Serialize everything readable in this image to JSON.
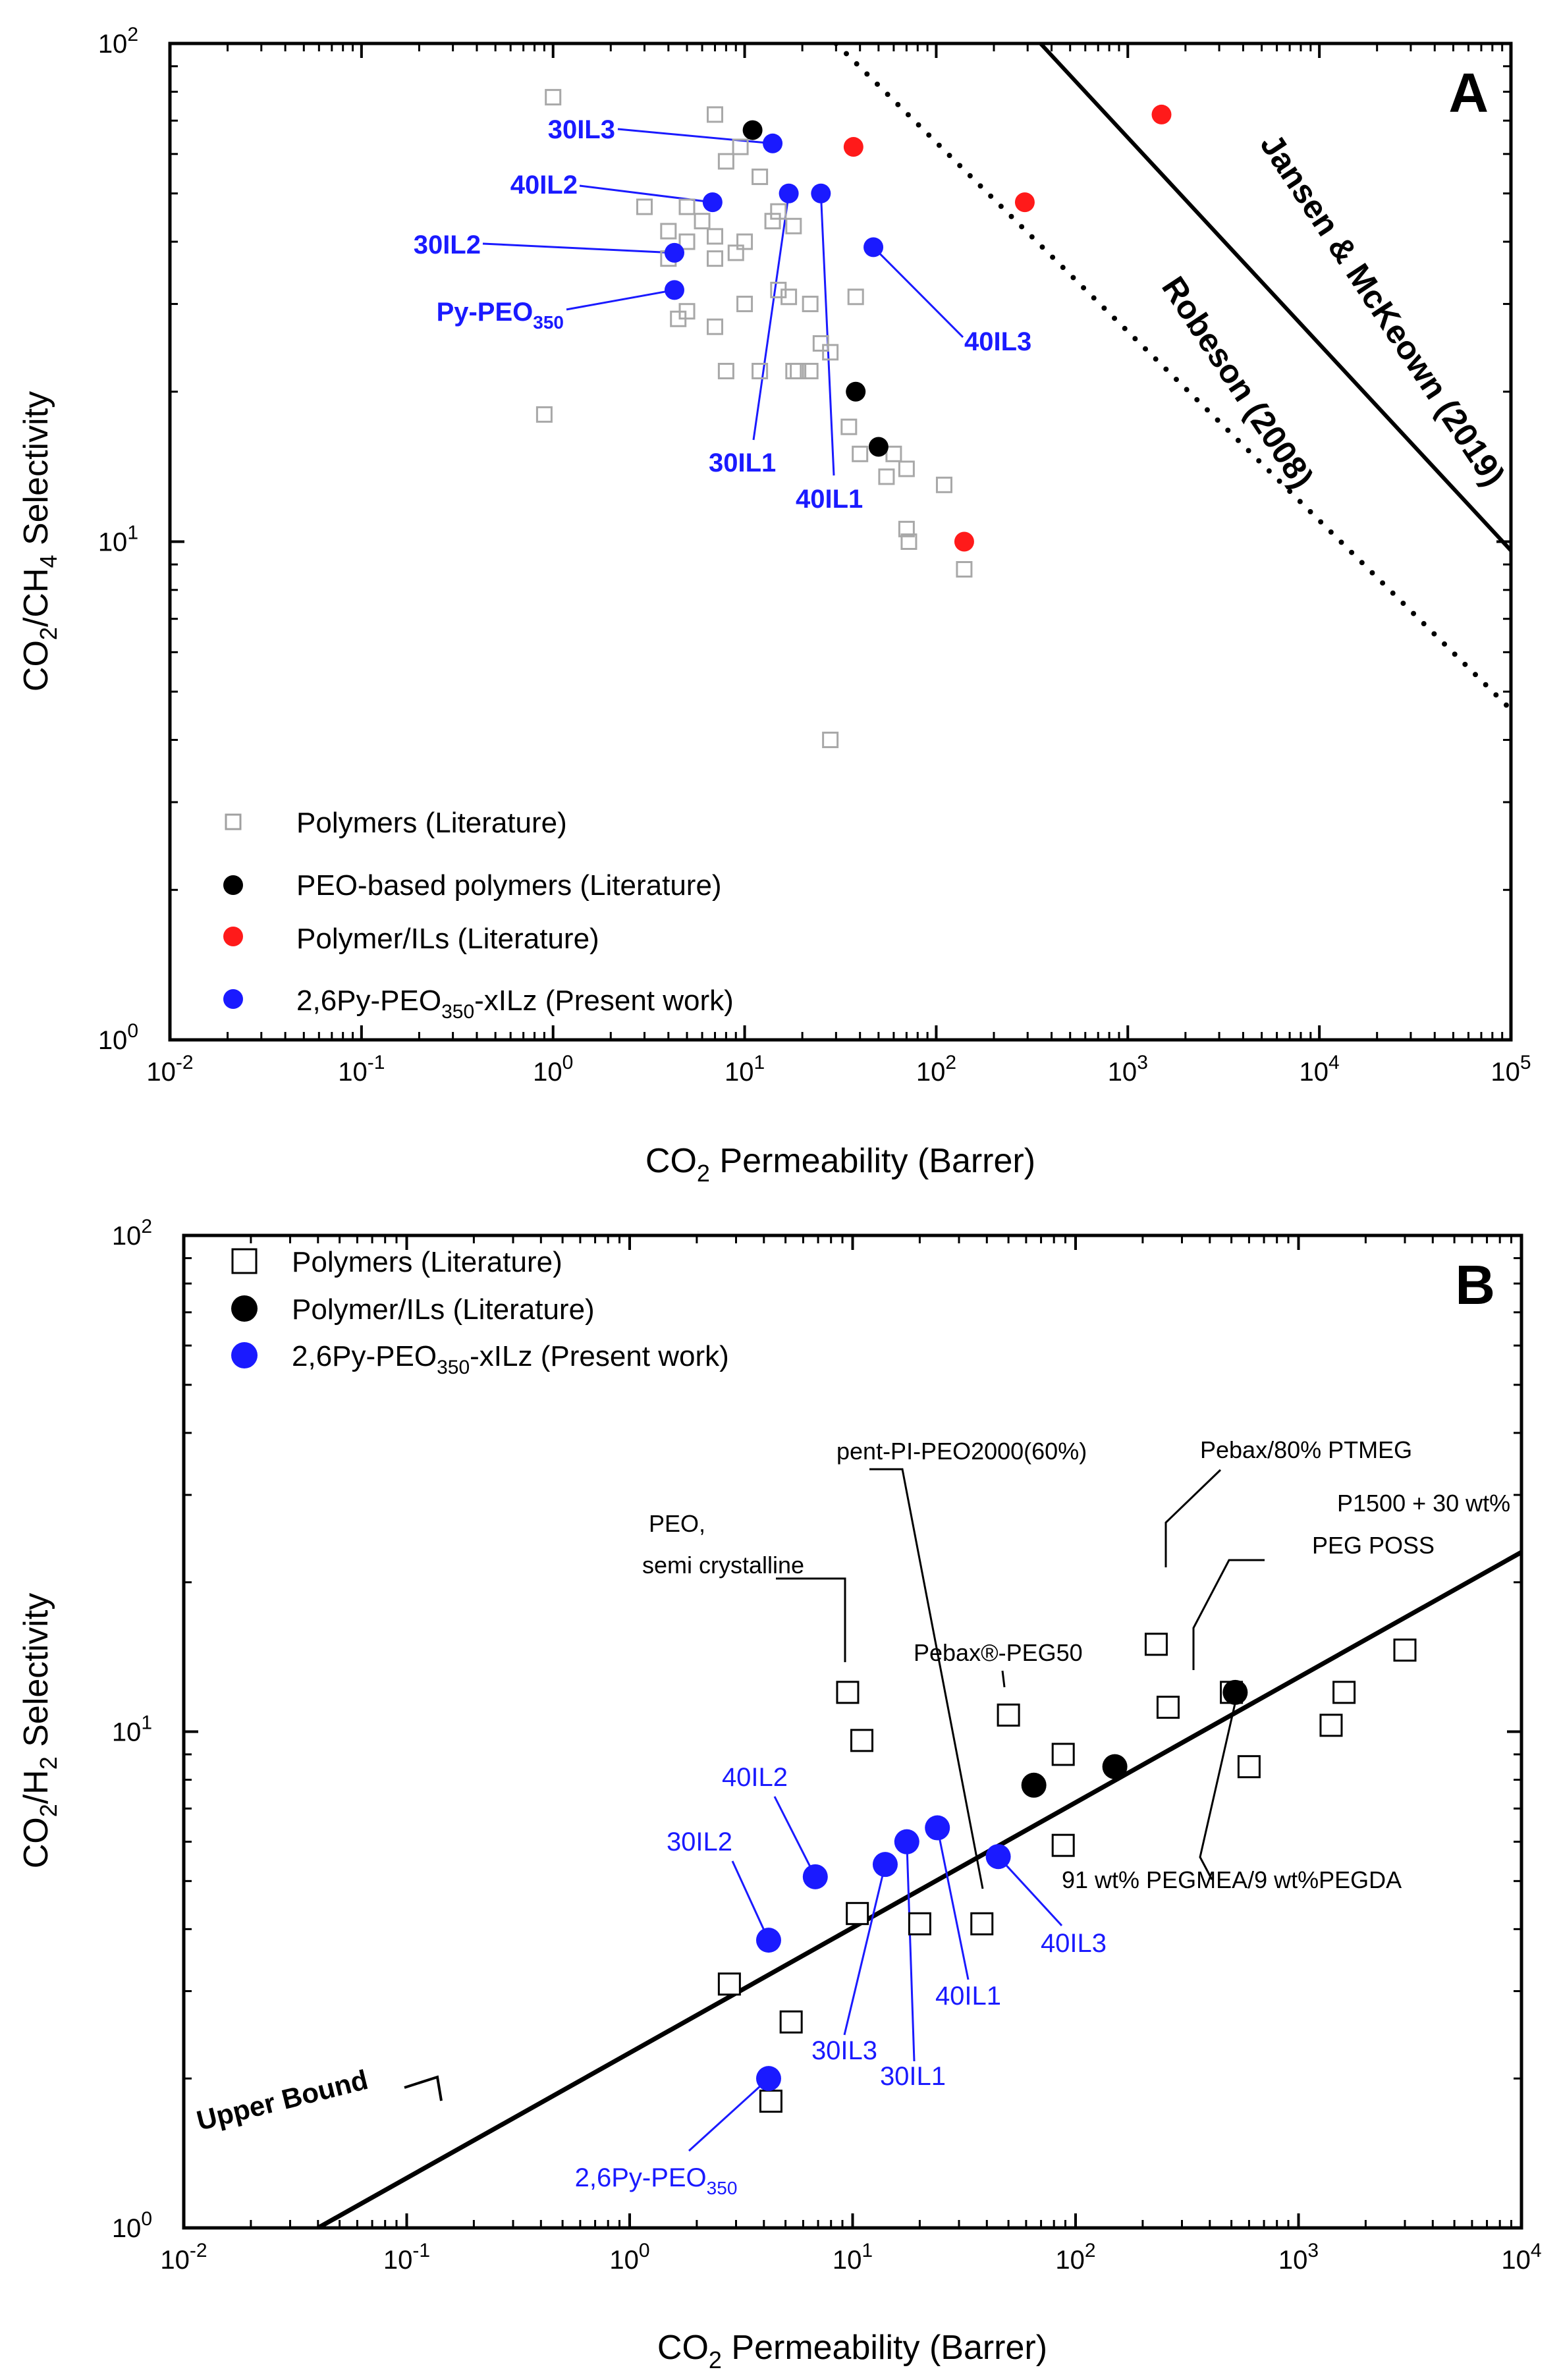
{
  "chart_data": [
    {
      "type": "scatter",
      "panel_label": "A",
      "xlabel_main": "CO",
      "xlabel_sub": "2",
      "xlabel_rest": " Permeability (Barrer)",
      "ylabel": {
        "p1": "CO",
        "s1": "2",
        "p2": "/CH",
        "s2": "4",
        "p3": " Selectivity"
      },
      "x_scale": "log",
      "y_scale": "log",
      "xlim": [
        0.01,
        100000
      ],
      "ylim": [
        1,
        100
      ],
      "x_ticks": [
        {
          "b": "10",
          "e": "-2",
          "v": 0.01
        },
        {
          "b": "10",
          "e": "-1",
          "v": 0.1
        },
        {
          "b": "10",
          "e": "0",
          "v": 1
        },
        {
          "b": "10",
          "e": "1",
          "v": 10
        },
        {
          "b": "10",
          "e": "2",
          "v": 100
        },
        {
          "b": "10",
          "e": "3",
          "v": 1000
        },
        {
          "b": "10",
          "e": "4",
          "v": 10000
        },
        {
          "b": "10",
          "e": "5",
          "v": 100000
        }
      ],
      "y_ticks": [
        {
          "b": "10",
          "e": "0",
          "v": 1
        },
        {
          "b": "10",
          "e": "1",
          "v": 10
        },
        {
          "b": "10",
          "e": "2",
          "v": 100
        }
      ],
      "upper_bounds": [
        {
          "name": "Jansen & McKeown (2019)",
          "style": "solid",
          "points": [
            [
              350,
              100
            ],
            [
              100000,
              9.6
            ]
          ]
        },
        {
          "name": "Robeson (2008)",
          "style": "dotted",
          "points": [
            [
              30,
              100
            ],
            [
              100000,
              4.6
            ]
          ]
        }
      ],
      "legend": [
        {
          "marker": "square-gray",
          "text": "Polymers (Literature)"
        },
        {
          "marker": "circle-black",
          "text": "PEO-based polymers (Literature)"
        },
        {
          "marker": "circle-red",
          "text": "Polymer/ILs (Literature)"
        },
        {
          "marker": "circle-blue",
          "text": "2,6Py-PEO",
          "sub": "350",
          "text2": "-xILz (Present work)"
        }
      ],
      "series": [
        {
          "name": "Polymers (Literature)",
          "marker": "square-gray",
          "points": [
            [
              1,
              78
            ],
            [
              7,
              72
            ],
            [
              9.5,
              62
            ],
            [
              8,
              58
            ],
            [
              12,
              54
            ],
            [
              3,
              47
            ],
            [
              5,
              47
            ],
            [
              4,
              42
            ],
            [
              6,
              44
            ],
            [
              7,
              41
            ],
            [
              10,
              40
            ],
            [
              14,
              44
            ],
            [
              15,
              46
            ],
            [
              18,
              43
            ],
            [
              4,
              37
            ],
            [
              5,
              40
            ],
            [
              7,
              37
            ],
            [
              9,
              38
            ],
            [
              15,
              32
            ],
            [
              17,
              31
            ],
            [
              5,
              29
            ],
            [
              7,
              27
            ],
            [
              10,
              30
            ],
            [
              22,
              30
            ],
            [
              25,
              25
            ],
            [
              8,
              22
            ],
            [
              12,
              22
            ],
            [
              18,
              22
            ],
            [
              22,
              22
            ],
            [
              19,
              22
            ],
            [
              38,
              31
            ],
            [
              28,
              24
            ],
            [
              35,
              17
            ],
            [
              40,
              15
            ],
            [
              60,
              15
            ],
            [
              70,
              14
            ],
            [
              55,
              13.5
            ],
            [
              70,
              10.6
            ],
            [
              72,
              10
            ],
            [
              110,
              13
            ],
            [
              140,
              8.8
            ],
            [
              0.9,
              18
            ],
            [
              4.5,
              28
            ],
            [
              28,
              4
            ]
          ]
        },
        {
          "name": "PEO-based polymers (Literature)",
          "marker": "circle-black",
          "points": [
            [
              11,
              67
            ],
            [
              38,
              20
            ],
            [
              50,
              15.5
            ]
          ]
        },
        {
          "name": "Polymer/ILs (Literature)",
          "marker": "circle-red",
          "points": [
            [
              37,
              62
            ],
            [
              290,
              48
            ],
            [
              140,
              10
            ],
            [
              1500,
              72
            ]
          ]
        },
        {
          "name": "2,6Py-PEO350-xILz (Present work)",
          "marker": "circle-blue",
          "points": [
            {
              "x": 14,
              "y": 63,
              "label": "30IL3"
            },
            {
              "x": 6.8,
              "y": 48,
              "label": "40IL2"
            },
            {
              "x": 4.3,
              "y": 38,
              "label": "30IL2"
            },
            {
              "x": 4.3,
              "y": 32,
              "label": "Py-PEO",
              "sub": "350"
            },
            {
              "x": 17,
              "y": 50,
              "label": "30IL1"
            },
            {
              "x": 25,
              "y": 50,
              "label": "40IL1"
            },
            {
              "x": 47,
              "y": 39,
              "label": "40IL3"
            }
          ]
        }
      ]
    },
    {
      "type": "scatter",
      "panel_label": "B",
      "xlabel_main": "CO",
      "xlabel_sub": "2",
      "xlabel_rest": " Permeability (Barrer)",
      "ylabel": {
        "p1": "CO",
        "s1": "2",
        "p2": "/H",
        "s2": "2",
        "p3": " Selectivity"
      },
      "x_scale": "log",
      "y_scale": "log",
      "xlim": [
        0.01,
        10000
      ],
      "ylim": [
        1,
        100
      ],
      "x_ticks": [
        {
          "b": "10",
          "e": "-2",
          "v": 0.01
        },
        {
          "b": "10",
          "e": "-1",
          "v": 0.1
        },
        {
          "b": "10",
          "e": "0",
          "v": 1
        },
        {
          "b": "10",
          "e": "1",
          "v": 10
        },
        {
          "b": "10",
          "e": "2",
          "v": 100
        },
        {
          "b": "10",
          "e": "3",
          "v": 1000
        },
        {
          "b": "10",
          "e": "4",
          "v": 10000
        }
      ],
      "y_ticks": [
        {
          "b": "10",
          "e": "0",
          "v": 1
        },
        {
          "b": "10",
          "e": "1",
          "v": 10
        },
        {
          "b": "10",
          "e": "2",
          "v": 100
        }
      ],
      "upper_bound": {
        "name": "Upper Bound",
        "points": [
          [
            0.04,
            1
          ],
          [
            10000,
            23
          ]
        ]
      },
      "legend": [
        {
          "marker": "square-open",
          "text": "Polymers (Literature)"
        },
        {
          "marker": "circle-black",
          "text": "Polymer/ILs (Literature)"
        },
        {
          "marker": "circle-blue",
          "text": "2,6Py-PEO",
          "sub": "350",
          "text2": "-xILz (Present work)"
        }
      ],
      "series": [
        {
          "name": "Polymers (Literature)",
          "marker": "square-open",
          "points": [
            [
              9.5,
              12
            ],
            [
              11,
              9.6
            ],
            [
              2.8,
              3.1
            ],
            [
              5.3,
              2.6
            ],
            [
              4.3,
              1.8
            ],
            [
              10.5,
              4.3
            ],
            [
              20,
              4.1
            ],
            [
              38,
              4.1
            ],
            [
              50,
              10.8
            ],
            [
              88,
              9
            ],
            [
              88,
              5.9
            ],
            [
              230,
              15
            ],
            [
              260,
              11.2
            ],
            [
              500,
              12
            ],
            [
              600,
              8.5
            ],
            [
              1400,
              10.3
            ],
            [
              1600,
              12
            ],
            [
              3000,
              14.6
            ]
          ]
        },
        {
          "name": "Polymer/ILs (Literature)",
          "marker": "circle-black",
          "points": [
            [
              65,
              7.8
            ],
            [
              150,
              8.5
            ],
            [
              520,
              12
            ]
          ]
        },
        {
          "name": "2,6Py-PEO350-xILz (Present work)",
          "marker": "circle-blue",
          "points": [
            {
              "x": 4.2,
              "y": 3.8,
              "label": "30IL2"
            },
            {
              "x": 6.8,
              "y": 5.1,
              "label": "40IL2"
            },
            {
              "x": 14,
              "y": 5.4,
              "label": "30IL3"
            },
            {
              "x": 17.5,
              "y": 6,
              "label": "30IL1"
            },
            {
              "x": 24,
              "y": 6.4,
              "label": "40IL1"
            },
            {
              "x": 45,
              "y": 5.6,
              "label": "40IL3"
            },
            {
              "x": 4.2,
              "y": 2,
              "label": "2,6Py-PEO",
              "sub": "350"
            }
          ]
        }
      ],
      "annotations": [
        {
          "key": "peo",
          "lines": [
            "PEO,",
            "semi crystalline"
          ]
        },
        {
          "key": "pent",
          "lines": [
            "pent-PI-PEO2000(60%)"
          ]
        },
        {
          "key": "pebax80",
          "lines": [
            "Pebax/80% PTMEG"
          ]
        },
        {
          "key": "p1500",
          "lines": [
            "P1500 + 30 wt%",
            "PEG POSS"
          ]
        },
        {
          "key": "pebax50",
          "lines": [
            "Pebax®-PEG50"
          ]
        },
        {
          "key": "pegmea",
          "lines": [
            "91 wt% PEGMEA/9 wt%PEGDA"
          ]
        }
      ]
    }
  ]
}
